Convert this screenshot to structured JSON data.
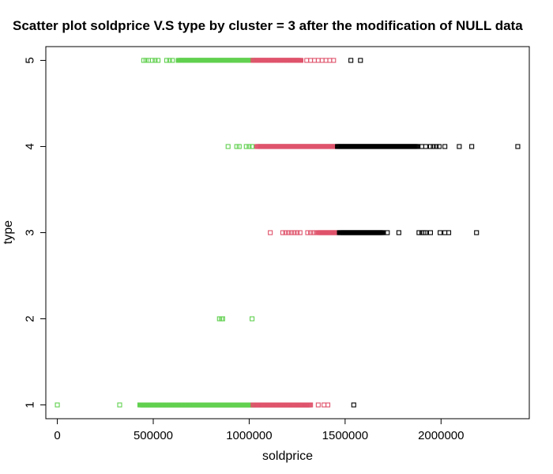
{
  "chart_data": {
    "type": "scatter",
    "title": "Scatter plot soldprice V.S type by cluster = 3 after the modification of NULL data",
    "xlabel": "soldprice",
    "ylabel": "type",
    "xlim": [
      -60000,
      2460000
    ],
    "ylim": [
      0.84,
      5.16
    ],
    "x_ticks": [
      0,
      500000,
      1000000,
      1500000,
      2000000
    ],
    "x_tick_labels": [
      "0",
      "500000",
      "1000000",
      "1500000",
      "2000000"
    ],
    "y_ticks": [
      1,
      2,
      3,
      4,
      5
    ],
    "y_tick_labels": [
      "1",
      "2",
      "3",
      "4",
      "5"
    ],
    "grid": false,
    "marker": "open-square",
    "series": [
      {
        "color": "#61D04F",
        "points": [
          {
            "y": 1,
            "x": [
              0,
              325000
            ]
          },
          {
            "y": 1,
            "range": [
              430000,
              1020000
            ]
          },
          {
            "y": 2,
            "x": [
              845000,
              855000,
              862000,
              1015000
            ]
          },
          {
            "y": 4,
            "x": [
              890000,
              935000,
              948000,
              985000,
              1000000,
              1015000
            ]
          },
          {
            "y": 5,
            "x": [
              450000,
              462000,
              475000,
              495000,
              510000,
              525000,
              570000,
              585000,
              600000
            ]
          },
          {
            "y": 5,
            "range": [
              630000,
              1020000
            ]
          }
        ]
      },
      {
        "color": "#DF536B",
        "points": [
          {
            "y": 1,
            "range": [
              1020000,
              1320000
            ]
          },
          {
            "y": 1,
            "x": [
              1360000,
              1390000,
              1410000
            ]
          },
          {
            "y": 3,
            "x": [
              1110000,
              1175000,
              1190000,
              1205000,
              1220000,
              1235000,
              1250000,
              1265000,
              1305000,
              1320000,
              1335000,
              1350000
            ]
          },
          {
            "y": 3,
            "range": [
              1360000,
              1460000
            ]
          },
          {
            "y": 4,
            "range": [
              1040000,
              1460000
            ]
          },
          {
            "y": 5,
            "range": [
              1020000,
              1270000
            ]
          },
          {
            "y": 5,
            "x": [
              1300000,
              1320000,
              1340000,
              1360000,
              1380000,
              1400000,
              1420000,
              1440000
            ]
          }
        ]
      },
      {
        "color": "#000000",
        "points": [
          {
            "y": 1,
            "x": [
              1545000
            ]
          },
          {
            "y": 3,
            "range": [
              1470000,
              1700000
            ]
          },
          {
            "y": 3,
            "x": [
              1720000,
              1780000,
              1885000,
              1900000,
              1910000,
              1920000,
              1945000,
              1995000,
              2020000,
              2040000,
              2185000
            ]
          },
          {
            "y": 4,
            "range": [
              1460000,
              1880000
            ]
          },
          {
            "y": 4,
            "x": [
              1900000,
              1920000,
              1945000,
              1960000,
              1975000,
              1990000,
              2020000,
              2095000,
              2160000,
              2400000
            ]
          },
          {
            "y": 5,
            "x": [
              1530000,
              1580000
            ]
          }
        ]
      }
    ]
  }
}
